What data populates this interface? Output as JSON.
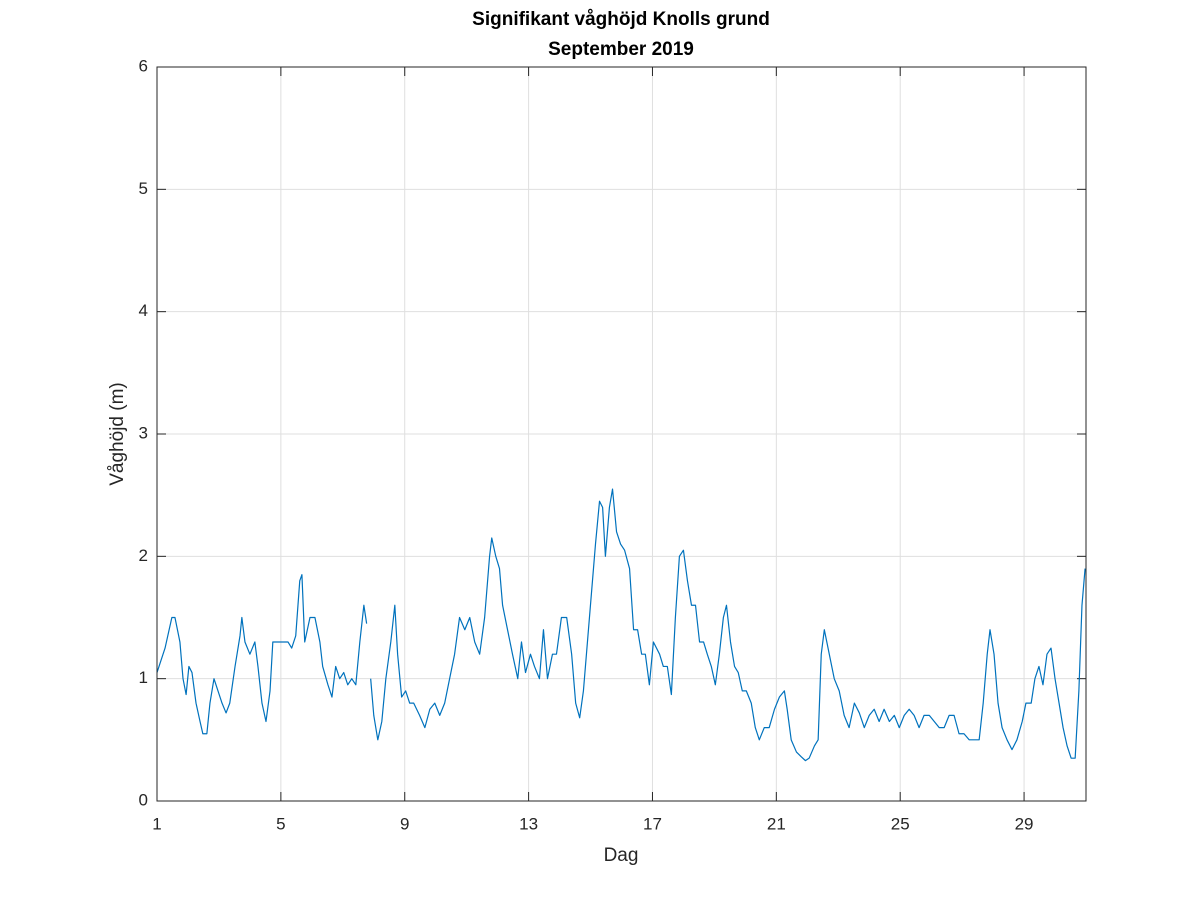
{
  "chart_data": {
    "type": "line",
    "title": "Signifikant våghöjd Knolls grund",
    "subtitle": "September 2019",
    "xlabel": "Dag",
    "ylabel": "Våghöjd (m)",
    "color": "#0072bd",
    "grid": true,
    "xlim": [
      1,
      31
    ],
    "ylim": [
      0,
      6
    ],
    "xticks": [
      1,
      5,
      9,
      13,
      17,
      21,
      25,
      29
    ],
    "yticks": [
      0,
      1,
      2,
      3,
      4,
      5,
      6
    ],
    "x": [
      1.0,
      1.26,
      1.48,
      1.58,
      1.74,
      1.84,
      1.94,
      2.03,
      2.13,
      2.26,
      2.39,
      2.48,
      2.61,
      2.71,
      2.84,
      2.97,
      3.1,
      3.23,
      3.35,
      3.52,
      3.68,
      3.74,
      3.84,
      4.0,
      4.16,
      4.26,
      4.39,
      4.52,
      4.65,
      4.74,
      4.9,
      5.06,
      5.23,
      5.35,
      5.48,
      5.61,
      5.68,
      5.77,
      5.94,
      6.1,
      6.26,
      6.35,
      6.52,
      6.65,
      6.77,
      6.9,
      7.03,
      7.16,
      7.29,
      7.42,
      7.55,
      7.68,
      7.77,
      7.83,
      7.9,
      8.0,
      8.13,
      8.26,
      8.39,
      8.55,
      8.68,
      8.77,
      8.9,
      9.03,
      9.16,
      9.29,
      9.48,
      9.65,
      9.81,
      9.97,
      10.13,
      10.29,
      10.45,
      10.61,
      10.77,
      10.94,
      11.1,
      11.26,
      11.42,
      11.58,
      11.74,
      11.81,
      11.94,
      12.06,
      12.16,
      12.32,
      12.48,
      12.65,
      12.77,
      12.9,
      13.06,
      13.19,
      13.35,
      13.48,
      13.61,
      13.77,
      13.9,
      14.06,
      14.23,
      14.39,
      14.52,
      14.65,
      14.77,
      14.9,
      15.03,
      15.16,
      15.29,
      15.39,
      15.48,
      15.61,
      15.71,
      15.84,
      15.97,
      16.1,
      16.26,
      16.39,
      16.52,
      16.65,
      16.77,
      16.9,
      17.03,
      17.23,
      17.35,
      17.48,
      17.61,
      17.74,
      17.87,
      18.0,
      18.13,
      18.26,
      18.39,
      18.52,
      18.65,
      18.77,
      18.9,
      19.03,
      19.16,
      19.29,
      19.39,
      19.52,
      19.65,
      19.77,
      19.9,
      20.03,
      20.19,
      20.32,
      20.45,
      20.61,
      20.77,
      20.94,
      21.1,
      21.26,
      21.35,
      21.48,
      21.65,
      21.81,
      21.94,
      22.06,
      22.23,
      22.35,
      22.45,
      22.55,
      22.71,
      22.87,
      23.03,
      23.19,
      23.35,
      23.52,
      23.68,
      23.84,
      24.0,
      24.16,
      24.32,
      24.48,
      24.65,
      24.81,
      24.97,
      25.13,
      25.29,
      25.45,
      25.61,
      25.77,
      25.94,
      26.1,
      26.26,
      26.42,
      26.58,
      26.74,
      26.9,
      27.06,
      27.23,
      27.39,
      27.55,
      27.68,
      27.81,
      27.9,
      28.03,
      28.16,
      28.29,
      28.45,
      28.61,
      28.77,
      28.94,
      29.06,
      29.23,
      29.35,
      29.48,
      29.61,
      29.74,
      29.87,
      30.0,
      30.13,
      30.26,
      30.39,
      30.52,
      30.65,
      30.77,
      30.87,
      30.97
    ],
    "values": [
      1.05,
      1.25,
      1.5,
      1.5,
      1.3,
      1.0,
      0.87,
      1.1,
      1.05,
      0.8,
      0.65,
      0.55,
      0.55,
      0.8,
      1.0,
      0.9,
      0.8,
      0.72,
      0.8,
      1.1,
      1.35,
      1.5,
      1.3,
      1.2,
      1.3,
      1.1,
      0.8,
      0.65,
      0.9,
      1.3,
      1.3,
      1.3,
      1.3,
      1.25,
      1.35,
      1.8,
      1.85,
      1.3,
      1.5,
      1.5,
      1.3,
      1.1,
      0.95,
      0.85,
      1.1,
      1.0,
      1.05,
      0.95,
      1.0,
      0.95,
      1.3,
      1.6,
      1.45,
      null,
      1.0,
      0.7,
      0.5,
      0.65,
      1.0,
      1.3,
      1.6,
      1.2,
      0.85,
      0.9,
      0.8,
      0.8,
      0.7,
      0.6,
      0.75,
      0.8,
      0.7,
      0.8,
      1.0,
      1.2,
      1.5,
      1.4,
      1.5,
      1.3,
      1.2,
      1.5,
      2.0,
      2.15,
      2.0,
      1.9,
      1.6,
      1.4,
      1.2,
      1.0,
      1.3,
      1.05,
      1.2,
      1.1,
      1.0,
      1.4,
      1.0,
      1.2,
      1.2,
      1.5,
      1.5,
      1.2,
      0.8,
      0.68,
      0.9,
      1.3,
      1.7,
      2.1,
      2.45,
      2.4,
      2.0,
      2.4,
      2.55,
      2.2,
      2.1,
      2.05,
      1.9,
      1.4,
      1.4,
      1.2,
      1.2,
      0.95,
      1.3,
      1.2,
      1.1,
      1.1,
      0.87,
      1.5,
      2.0,
      2.05,
      1.8,
      1.6,
      1.6,
      1.3,
      1.3,
      1.2,
      1.1,
      0.95,
      1.2,
      1.5,
      1.6,
      1.3,
      1.1,
      1.05,
      0.9,
      0.9,
      0.8,
      0.6,
      0.5,
      0.6,
      0.6,
      0.75,
      0.85,
      0.9,
      0.75,
      0.5,
      0.4,
      0.36,
      0.33,
      0.35,
      0.45,
      0.5,
      1.2,
      1.4,
      1.2,
      1.0,
      0.9,
      0.7,
      0.6,
      0.8,
      0.72,
      0.6,
      0.7,
      0.75,
      0.65,
      0.75,
      0.65,
      0.7,
      0.6,
      0.7,
      0.75,
      0.7,
      0.6,
      0.7,
      0.7,
      0.65,
      0.6,
      0.6,
      0.7,
      0.7,
      0.55,
      0.55,
      0.5,
      0.5,
      0.5,
      0.8,
      1.2,
      1.4,
      1.2,
      0.8,
      0.6,
      0.5,
      0.42,
      0.5,
      0.65,
      0.8,
      0.8,
      1.0,
      1.1,
      0.95,
      1.2,
      1.25,
      1.0,
      0.8,
      0.6,
      0.45,
      0.35,
      0.35,
      0.9,
      1.6,
      1.9
    ]
  }
}
